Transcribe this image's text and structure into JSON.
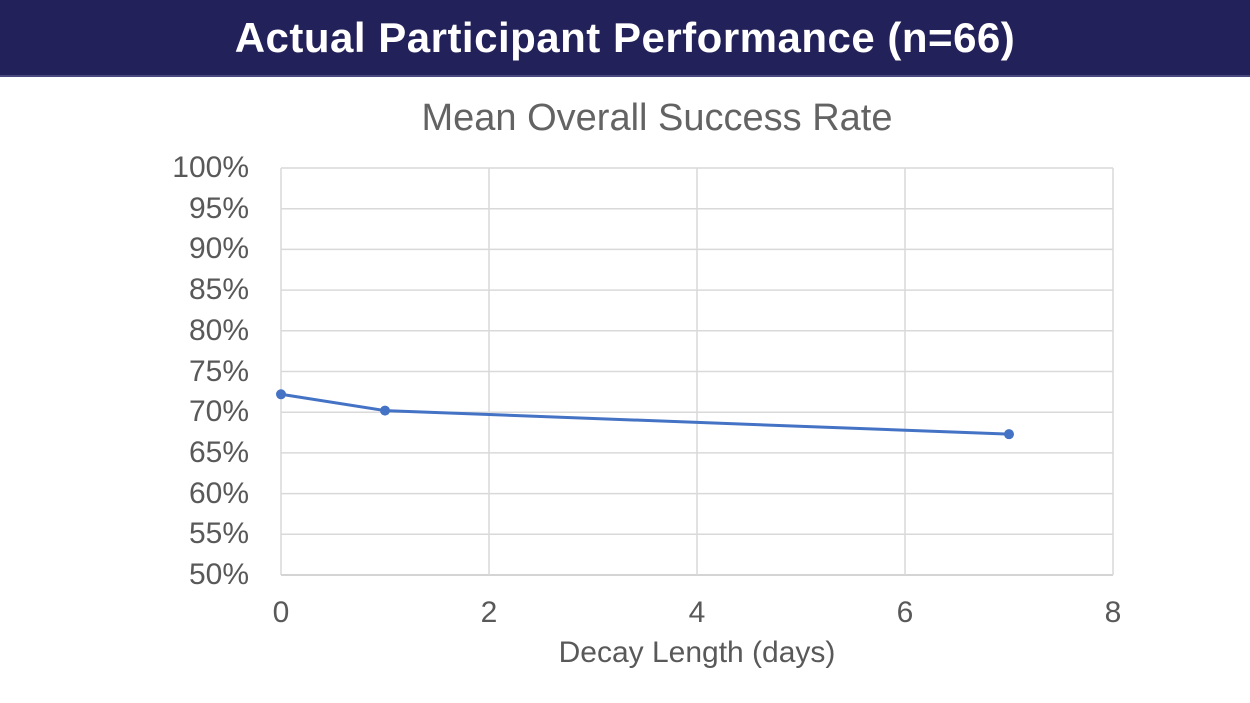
{
  "banner": {
    "title": "Actual Participant Performance (n=66)",
    "background_color": "#232159",
    "text_color": "#ffffff"
  },
  "chart_data": {
    "type": "line",
    "title": "Mean Overall Success Rate",
    "xlabel": "Decay Length (days)",
    "ylabel": "",
    "x": [
      0,
      1,
      7
    ],
    "values": [
      72.2,
      70.2,
      67.3
    ],
    "unit": "%",
    "xlim": [
      0,
      8
    ],
    "ylim": [
      50,
      100
    ],
    "xticks": [
      0,
      2,
      4,
      6,
      8
    ],
    "ytick_values": [
      100,
      95,
      90,
      85,
      80,
      75,
      70,
      65,
      60,
      55,
      50
    ],
    "yticks": [
      "100%",
      "95%",
      "90%",
      "85%",
      "80%",
      "75%",
      "70%",
      "65%",
      "60%",
      "55%",
      "50%"
    ],
    "grid": true,
    "legend_position": "none",
    "marker": "circle",
    "line_color": "#4472C4",
    "gridline_color": "#D9D9D9",
    "axis_line_color": "#C6C6C6",
    "tick_label_color": "#595959",
    "title_color": "#636363"
  }
}
